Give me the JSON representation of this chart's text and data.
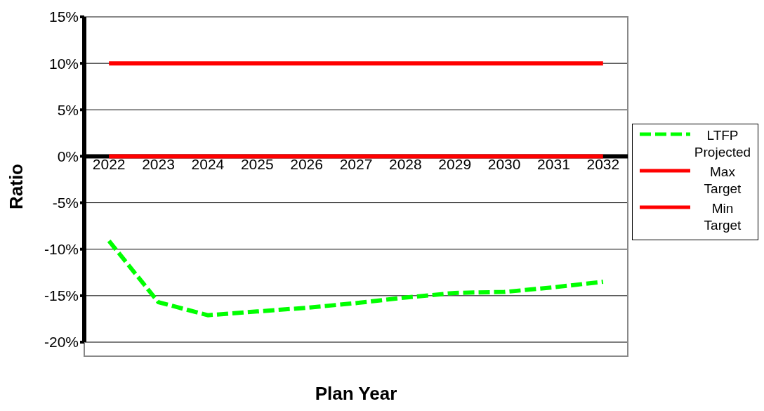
{
  "chart_data": {
    "type": "line",
    "xlabel": "Plan Year",
    "ylabel": "Ratio",
    "categories": [
      "2022",
      "2023",
      "2024",
      "2025",
      "2026",
      "2027",
      "2028",
      "2029",
      "2030",
      "2031",
      "2032"
    ],
    "series": [
      {
        "name": "LTFP Projected",
        "color": "#00ff00",
        "line_style": "dashed",
        "values": [
          -9.1,
          -15.7,
          -17.1,
          -16.7,
          -16.3,
          -15.8,
          -15.2,
          -14.7,
          -14.6,
          -14.1,
          -13.5
        ]
      },
      {
        "name": "Max Target",
        "color": "#ff0000",
        "line_style": "solid",
        "values": [
          10,
          10,
          10,
          10,
          10,
          10,
          10,
          10,
          10,
          10,
          10
        ]
      },
      {
        "name": "Min Target",
        "color": "#ff0000",
        "line_style": "solid",
        "values": [
          0,
          0,
          0,
          0,
          0,
          0,
          0,
          0,
          0,
          0,
          0
        ]
      }
    ],
    "ylim": [
      -20,
      15
    ],
    "yticks": [
      {
        "value": -20,
        "label": "-20%"
      },
      {
        "value": -15,
        "label": "-15%"
      },
      {
        "value": -10,
        "label": "-10%"
      },
      {
        "value": -5,
        "label": "-5%"
      },
      {
        "value": 0,
        "label": "0%"
      },
      {
        "value": 5,
        "label": "5%"
      },
      {
        "value": 10,
        "label": "10%"
      },
      {
        "value": 15,
        "label": "15%"
      }
    ],
    "grid": "y",
    "legend": "right",
    "marker": "none"
  }
}
